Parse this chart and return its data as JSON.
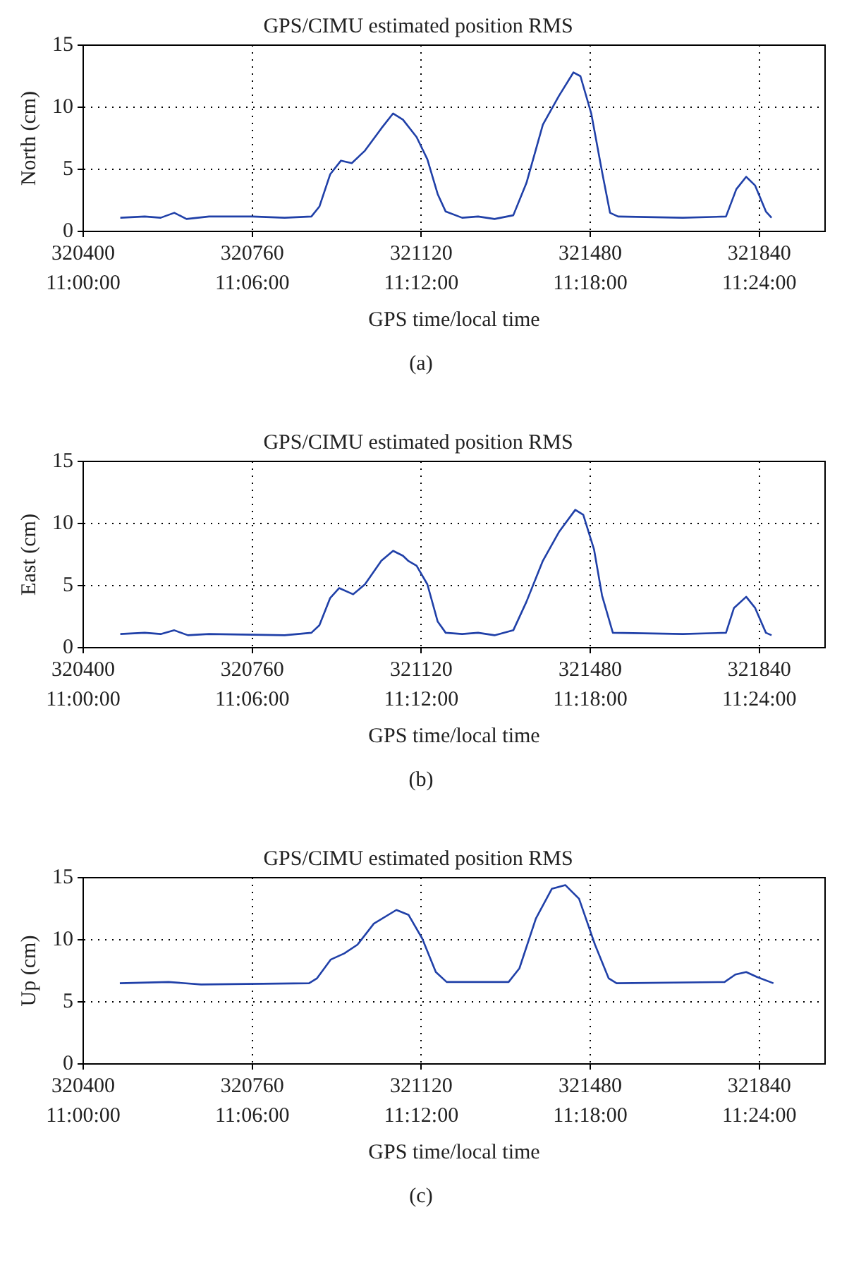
{
  "chart_data": [
    {
      "type": "line",
      "title": "GPS/CIMU estimated position RMS",
      "xlabel": "GPS time/local time",
      "ylabel": "North (cm)",
      "annotations": [
        "(a)"
      ],
      "xlim": [
        320400,
        321980
      ],
      "ylim": [
        0,
        15
      ],
      "xticks": [
        320400,
        320760,
        321120,
        321480,
        321840
      ],
      "x2lim": [
        11,
        11.4389
      ],
      "x2ticks": [
        {
          "value": 11,
          "label": "11:00:00"
        },
        {
          "value": 11.1,
          "label": "11:06:00"
        },
        {
          "value": 11.2,
          "label": "11:12:00"
        },
        {
          "value": 11.3,
          "label": "11:18:00"
        },
        {
          "value": 11.4,
          "label": "11:24:00"
        }
      ],
      "yticks": [
        0,
        5,
        10,
        15
      ],
      "grid": true,
      "line_style": "solid",
      "series": [
        {
          "color": "#2040a8",
          "x": [
            320479,
            320531,
            320565,
            320594,
            320620,
            320668,
            320760,
            320829,
            320886,
            320903,
            320926,
            320949,
            320972,
            321000,
            321035,
            321060,
            321081,
            321110,
            321133,
            321155,
            321172,
            321207,
            321241,
            321276,
            321316,
            321344,
            321379,
            321413,
            321444,
            321459,
            321482,
            321505,
            321522,
            321539,
            321677,
            321769,
            321791,
            321812,
            321831,
            321854,
            321866
          ],
          "values": [
            1.1,
            1.2,
            1.1,
            1.5,
            1.0,
            1.2,
            1.2,
            1.1,
            1.2,
            2.0,
            4.6,
            5.7,
            5.5,
            6.5,
            8.3,
            9.5,
            9.0,
            7.6,
            5.8,
            3.0,
            1.6,
            1.1,
            1.2,
            1.0,
            1.3,
            3.9,
            8.6,
            10.9,
            12.8,
            12.5,
            9.5,
            4.8,
            1.5,
            1.2,
            1.1,
            1.2,
            3.4,
            4.4,
            3.7,
            1.6,
            1.1
          ]
        }
      ]
    },
    {
      "type": "line",
      "title": "GPS/CIMU estimated position RMS",
      "xlabel": "GPS time/local time",
      "ylabel": "East (cm)",
      "annotations": [
        "(b)"
      ],
      "xlim": [
        320400,
        321980
      ],
      "ylim": [
        0,
        15
      ],
      "xticks": [
        320400,
        320760,
        321120,
        321480,
        321840
      ],
      "x2lim": [
        11,
        11.4389
      ],
      "x2ticks": [
        {
          "value": 11,
          "label": "11:00:00"
        },
        {
          "value": 11.1,
          "label": "11:06:00"
        },
        {
          "value": 11.2,
          "label": "11:12:00"
        },
        {
          "value": 11.3,
          "label": "11:18:00"
        },
        {
          "value": 11.4,
          "label": "11:24:00"
        }
      ],
      "yticks": [
        0,
        5,
        10,
        15
      ],
      "grid": true,
      "line_style": "solid",
      "series": [
        {
          "color": "#2040a8",
          "x": [
            320479,
            320531,
            320565,
            320594,
            320623,
            320668,
            320829,
            320886,
            320903,
            320926,
            320945,
            320975,
            321000,
            321035,
            321060,
            321081,
            321092,
            321110,
            321133,
            321155,
            321172,
            321207,
            321241,
            321276,
            321316,
            321344,
            321379,
            321413,
            321448,
            321465,
            321488,
            321505,
            321528,
            321677,
            321769,
            321786,
            321812,
            321831,
            321854,
            321866
          ],
          "values": [
            1.1,
            1.2,
            1.1,
            1.4,
            1.0,
            1.1,
            1.0,
            1.2,
            1.8,
            4.0,
            4.8,
            4.3,
            5.1,
            7.0,
            7.8,
            7.4,
            7.0,
            6.6,
            5.1,
            2.1,
            1.2,
            1.1,
            1.2,
            1.0,
            1.4,
            3.7,
            7.0,
            9.3,
            11.1,
            10.7,
            7.9,
            4.2,
            1.2,
            1.1,
            1.2,
            3.2,
            4.1,
            3.2,
            1.2,
            1.0
          ]
        }
      ]
    },
    {
      "type": "line",
      "title": "GPS/CIMU estimated position RMS",
      "xlabel": "GPS time/local time",
      "ylabel": "Up (cm)",
      "annotations": [
        "(c)"
      ],
      "xlim": [
        320400,
        321980
      ],
      "ylim": [
        0,
        15
      ],
      "xticks": [
        320400,
        320760,
        321120,
        321480,
        321840
      ],
      "x2lim": [
        11,
        11.4389
      ],
      "x2ticks": [
        {
          "value": 11,
          "label": "11:00:00"
        },
        {
          "value": 11.1,
          "label": "11:06:00"
        },
        {
          "value": 11.2,
          "label": "11:12:00"
        },
        {
          "value": 11.3,
          "label": "11:18:00"
        },
        {
          "value": 11.4,
          "label": "11:24:00"
        }
      ],
      "yticks": [
        0,
        5,
        10,
        15
      ],
      "grid": true,
      "line_style": "solid",
      "series": [
        {
          "color": "#2040a8",
          "x": [
            320478,
            320582,
            320651,
            320881,
            320898,
            320927,
            320956,
            320984,
            321019,
            321067,
            321093,
            321122,
            321151,
            321174,
            321306,
            321329,
            321364,
            321398,
            321427,
            321456,
            321490,
            321519,
            321536,
            321766,
            321789,
            321812,
            321835,
            321870
          ],
          "values": [
            6.5,
            6.6,
            6.4,
            6.5,
            6.9,
            8.4,
            8.9,
            9.6,
            11.3,
            12.4,
            12.0,
            10.1,
            7.4,
            6.6,
            6.6,
            7.7,
            11.7,
            14.1,
            14.4,
            13.3,
            9.6,
            6.9,
            6.5,
            6.6,
            7.2,
            7.4,
            7.0,
            6.5
          ]
        }
      ]
    }
  ]
}
